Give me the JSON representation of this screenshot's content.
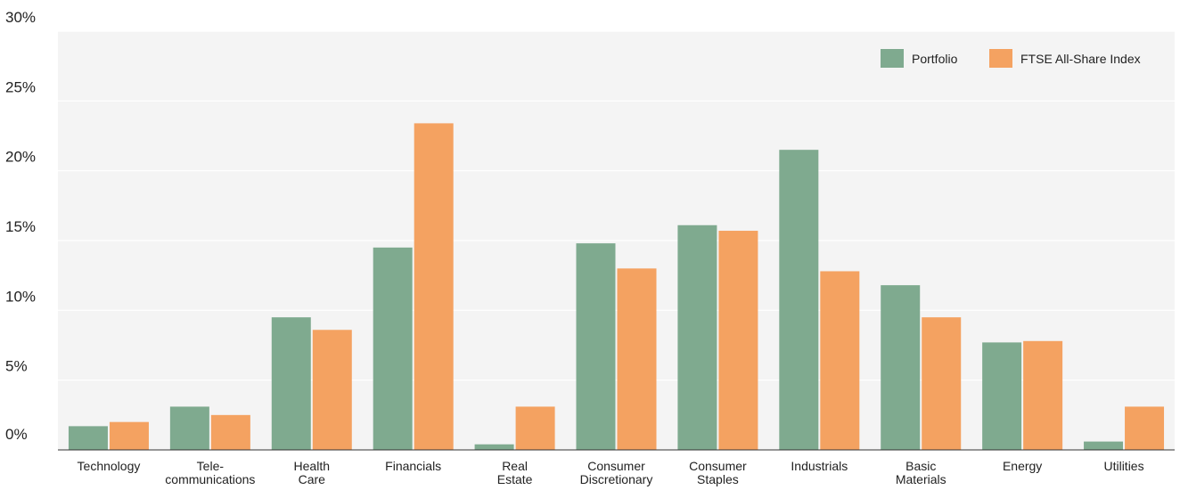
{
  "colors": {
    "portfolio": "#7faa8f",
    "index": "#f4a261",
    "plot_background": "#f4f4f4",
    "gridline": "#ffffff",
    "axis": "#333333"
  },
  "chart_data": {
    "type": "bar",
    "title": "",
    "xlabel": "",
    "ylabel": "",
    "ylim": [
      0,
      30
    ],
    "y_ticks": [
      0,
      5,
      10,
      15,
      20,
      25,
      30
    ],
    "y_tick_labels": [
      "0%",
      "5%",
      "10%",
      "15%",
      "20%",
      "25%",
      "30%"
    ],
    "grid": true,
    "legend_position": "top-right",
    "categories": [
      [
        "Technology"
      ],
      [
        "Tele-",
        "communications"
      ],
      [
        "Health",
        "Care"
      ],
      [
        "Financials"
      ],
      [
        "Real",
        "Estate"
      ],
      [
        "Consumer",
        "Discretionary"
      ],
      [
        "Consumer",
        "Staples"
      ],
      [
        "Industrials"
      ],
      [
        "Basic",
        "Materials"
      ],
      [
        "Energy"
      ],
      [
        "Utilities"
      ]
    ],
    "series": [
      {
        "name": "Portfolio",
        "values": [
          1.7,
          3.1,
          9.5,
          14.5,
          0.4,
          14.8,
          16.1,
          21.5,
          11.8,
          7.7,
          0.6
        ]
      },
      {
        "name": "FTSE All-Share Index",
        "values": [
          2.0,
          2.5,
          8.6,
          23.4,
          3.1,
          13.0,
          15.7,
          12.8,
          9.5,
          7.8,
          3.1
        ]
      }
    ]
  }
}
